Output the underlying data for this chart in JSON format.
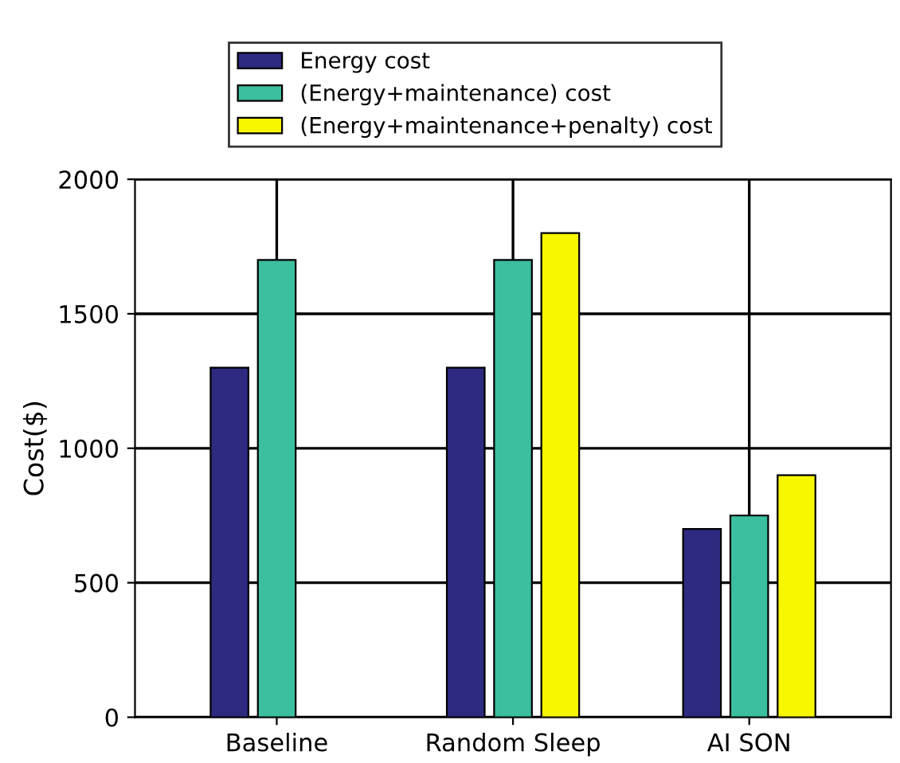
{
  "chart_data": {
    "type": "bar",
    "ylabel": "Cost($)",
    "categories": [
      "Baseline",
      "Random Sleep",
      "AI SON"
    ],
    "series": [
      {
        "name": "Energy cost",
        "color": "#2e2a80",
        "values": [
          1300,
          1300,
          700
        ]
      },
      {
        "name": "(Energy+maintenance) cost",
        "color": "#3cbf9e",
        "values": [
          1700,
          1700,
          750
        ]
      },
      {
        "name": "(Energy+maintenance+penalty) cost",
        "color": "#f7f700",
        "values": [
          null,
          1800,
          900
        ]
      }
    ],
    "ylim": [
      0,
      2000
    ],
    "yticks": [
      0,
      500,
      1000,
      1500,
      2000
    ],
    "grid": true,
    "legend": "top"
  }
}
